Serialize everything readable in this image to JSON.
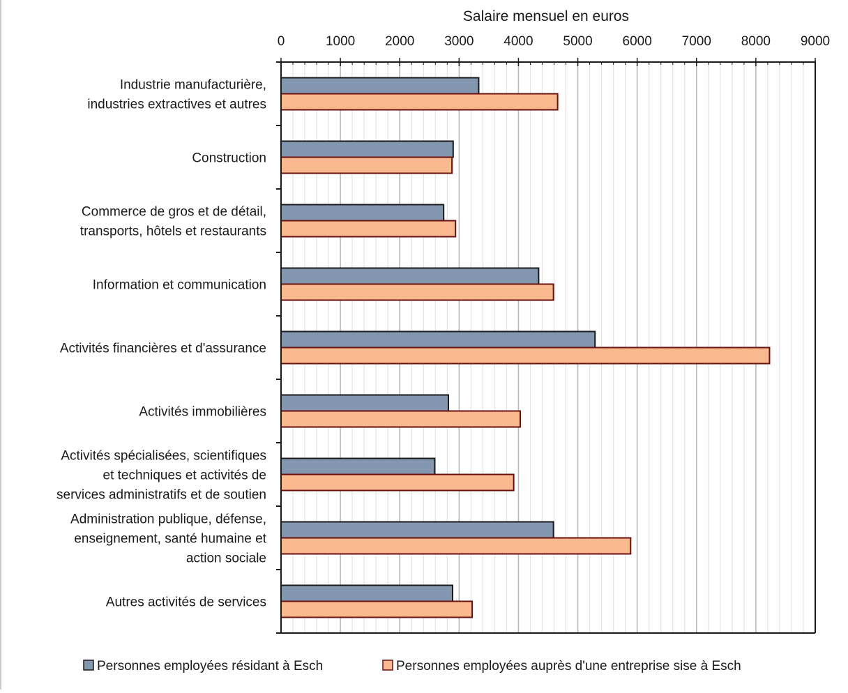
{
  "chart_data": {
    "type": "bar",
    "orientation": "horizontal",
    "title": "",
    "xlabel": "Salaire mensuel en euros",
    "ylabel": "",
    "xlim": [
      0,
      9000
    ],
    "x_ticks": [
      0,
      1000,
      2000,
      3000,
      4000,
      5000,
      6000,
      7000,
      8000,
      9000
    ],
    "x_axis_position": "top",
    "grid": true,
    "legend_position": "bottom",
    "categories": [
      [
        "Industrie manufacturière,",
        "industries extractives et autres"
      ],
      [
        "Construction"
      ],
      [
        "Commerce de gros et de détail,",
        "transports, hôtels et restaurants"
      ],
      [
        "Information et communication"
      ],
      [
        "Activités financières et d'assurance"
      ],
      [
        "Activités immobilières"
      ],
      [
        "Activités spécialisées, scientifiques",
        "et techniques et activités de",
        "services administratifs et de soutien"
      ],
      [
        "Administration publique, défense,",
        "enseignement, santé humaine et",
        "action sociale"
      ],
      [
        "Autres activités de services"
      ]
    ],
    "series": [
      {
        "name": "Personnes employées résidant à Esch",
        "color": "#8497b0",
        "edge_color": "#1a1a1a",
        "values": [
          3330,
          2900,
          2740,
          4340,
          5290,
          2820,
          2590,
          4590,
          2890
        ]
      },
      {
        "name": "Personnes employées auprès d'une entreprise sise à Esch",
        "color": "#f8b98e",
        "edge_color": "#6b1010",
        "values": [
          4660,
          2880,
          2940,
          4590,
          8230,
          4030,
          3920,
          5890,
          3220
        ]
      }
    ]
  }
}
